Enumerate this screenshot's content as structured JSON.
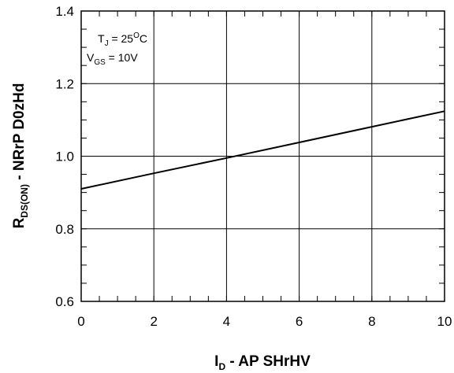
{
  "chart_data": {
    "type": "line",
    "title": "",
    "xlabel": {
      "main": "I",
      "sub": "D",
      "rest": " - AP SHrHV"
    },
    "ylabel": {
      "main": "R",
      "sub": "DS(ON)",
      "rest": " - NRrP D0zHd"
    },
    "xlim": [
      0,
      10
    ],
    "ylim": [
      0.6,
      1.4
    ],
    "xticks": [
      "0",
      "2",
      "4",
      "6",
      "8",
      "10"
    ],
    "yticks": [
      "0.6",
      "0.8",
      "1.0",
      "1.2",
      "1.4"
    ],
    "grid": true,
    "annotations": [
      {
        "main": "T",
        "sub": "J",
        "rest": " = 25",
        "sup": "O",
        "tail": "C"
      },
      {
        "main": "V",
        "sub": "GS",
        "rest": " = 10V",
        "sup": "",
        "tail": ""
      }
    ],
    "series": [
      {
        "x": [
          0,
          2,
          4,
          6,
          8,
          10
        ],
        "y": [
          0.91,
          0.953,
          0.995,
          1.038,
          1.081,
          1.124
        ]
      }
    ]
  }
}
